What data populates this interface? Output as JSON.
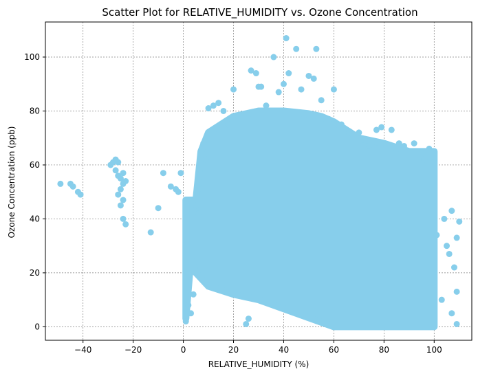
{
  "chart_data": {
    "type": "scatter",
    "title": "Scatter Plot for RELATIVE_HUMIDITY vs. Ozone Concentration",
    "xlabel": "RELATIVE_HUMIDITY (%)",
    "ylabel": "Ozone Concentration (ppb)",
    "xlim": [
      -55,
      115
    ],
    "ylim": [
      -5,
      113
    ],
    "xticks": [
      -40,
      -20,
      0,
      20,
      40,
      60,
      80,
      100
    ],
    "yticks": [
      0,
      20,
      40,
      60,
      80,
      100
    ],
    "grid": true,
    "marker_color": "#87CEEB",
    "points": [
      [
        -49,
        53
      ],
      [
        -45,
        53
      ],
      [
        -44,
        52
      ],
      [
        -42,
        50
      ],
      [
        -41,
        49
      ],
      [
        -29,
        60
      ],
      [
        -28,
        61
      ],
      [
        -27,
        62
      ],
      [
        -26,
        61
      ],
      [
        -27,
        58
      ],
      [
        -26,
        56
      ],
      [
        -25,
        55
      ],
      [
        -24,
        53
      ],
      [
        -25,
        51
      ],
      [
        -26,
        49
      ],
      [
        -24,
        47
      ],
      [
        -25,
        45
      ],
      [
        -24,
        57
      ],
      [
        -23,
        54
      ],
      [
        -24,
        40
      ],
      [
        -23,
        38
      ],
      [
        -13,
        35
      ],
      [
        -10,
        44
      ],
      [
        -8,
        57
      ],
      [
        -5,
        52
      ],
      [
        -3,
        51
      ],
      [
        -1,
        57
      ],
      [
        -2,
        50
      ],
      [
        1,
        2
      ],
      [
        2,
        8
      ],
      [
        3,
        5
      ],
      [
        4,
        12
      ],
      [
        5,
        45
      ],
      [
        6,
        42
      ],
      [
        8,
        68
      ],
      [
        9,
        62
      ],
      [
        10,
        81
      ],
      [
        12,
        82
      ],
      [
        14,
        83
      ],
      [
        16,
        80
      ],
      [
        18,
        75
      ],
      [
        20,
        88
      ],
      [
        22,
        78
      ],
      [
        25,
        1
      ],
      [
        26,
        3
      ],
      [
        27,
        95
      ],
      [
        29,
        94
      ],
      [
        30,
        89
      ],
      [
        31,
        89
      ],
      [
        33,
        82
      ],
      [
        36,
        100
      ],
      [
        38,
        87
      ],
      [
        40,
        90
      ],
      [
        41,
        107
      ],
      [
        42,
        94
      ],
      [
        45,
        103
      ],
      [
        47,
        88
      ],
      [
        50,
        93
      ],
      [
        52,
        92
      ],
      [
        53,
        103
      ],
      [
        55,
        84
      ],
      [
        58,
        77
      ],
      [
        60,
        88
      ],
      [
        63,
        75
      ],
      [
        66,
        72
      ],
      [
        70,
        72
      ],
      [
        74,
        67
      ],
      [
        77,
        73
      ],
      [
        79,
        74
      ],
      [
        83,
        73
      ],
      [
        86,
        68
      ],
      [
        88,
        67
      ],
      [
        92,
        68
      ],
      [
        96,
        62
      ],
      [
        98,
        66
      ],
      [
        100,
        61
      ],
      [
        101,
        34
      ],
      [
        103,
        10
      ],
      [
        104,
        40
      ],
      [
        105,
        30
      ],
      [
        106,
        27
      ],
      [
        107,
        43
      ],
      [
        107,
        5
      ],
      [
        108,
        22
      ],
      [
        109,
        33
      ],
      [
        109,
        1
      ],
      [
        110,
        39
      ],
      [
        109,
        13
      ]
    ]
  }
}
